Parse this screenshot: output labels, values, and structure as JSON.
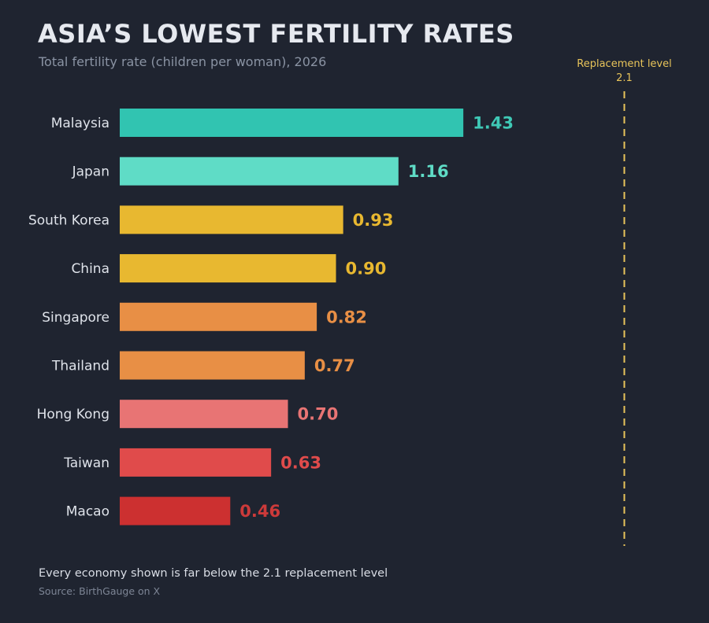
{
  "header": {
    "title": "ASIA’S LOWEST FERTILITY RATES",
    "subtitle": "Total fertility rate (children per woman), 2026"
  },
  "footer": {
    "note": "Every economy shown is far below the 2.1 replacement level",
    "source": "Source: BirthGauge on X"
  },
  "chart_data": {
    "type": "bar",
    "orientation": "horizontal",
    "categories": [
      "Malaysia",
      "Japan",
      "South Korea",
      "China",
      "Singapore",
      "Thailand",
      "Hong Kong",
      "Taiwan",
      "Macao"
    ],
    "values": [
      1.43,
      1.16,
      0.93,
      0.9,
      0.82,
      0.77,
      0.7,
      0.63,
      0.46
    ],
    "value_labels": [
      "1.43",
      "1.16",
      "0.93",
      "0.90",
      "0.82",
      "0.77",
      "0.70",
      "0.63",
      "0.46"
    ],
    "bar_colors": [
      "#31c4b1",
      "#5fdcc6",
      "#e8b830",
      "#e8b830",
      "#e88f45",
      "#e88f45",
      "#e87474",
      "#e04b4b",
      "#cc3030"
    ],
    "label_colors": [
      "#3fc9b6",
      "#5fdcc6",
      "#e8b830",
      "#e8b830",
      "#e88f45",
      "#e88f45",
      "#e87474",
      "#e04b4b",
      "#cc3a3a"
    ],
    "xlim": [
      0,
      2.1
    ],
    "grid": false,
    "reference_line": {
      "value": 2.1,
      "label": "Replacement level",
      "value_label": "2.1",
      "color": "#e8c45a"
    }
  }
}
